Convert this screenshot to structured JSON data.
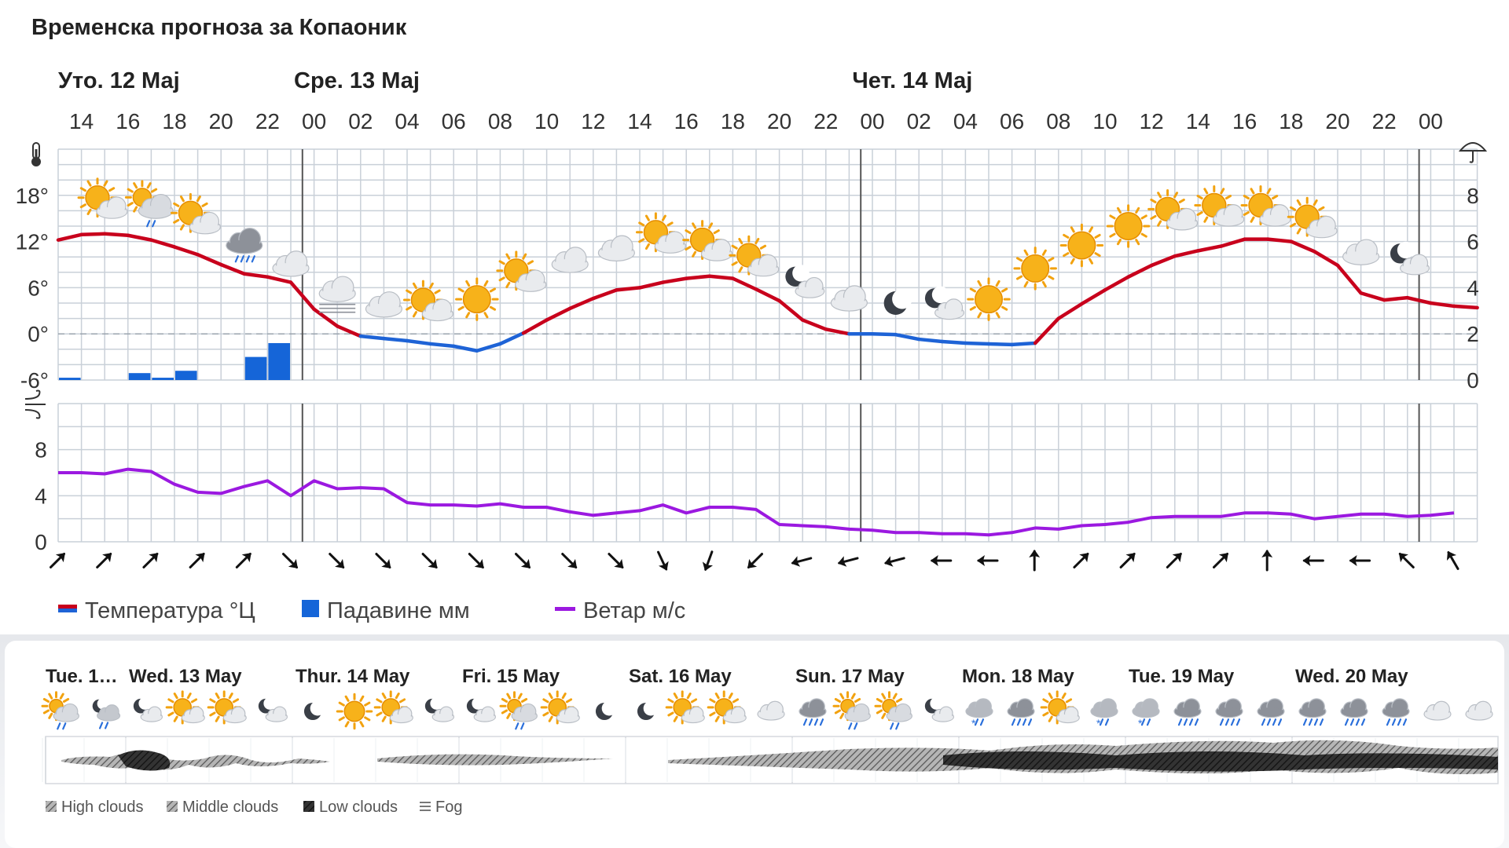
{
  "title": "Временска прогноза за Копаоник",
  "colors": {
    "temp_warm": "#c8001c",
    "temp_cold": "#1e63d6",
    "precip": "#1565d8",
    "wind": "#9b19e0",
    "grid": "#c9d0d8",
    "day_line": "#555555"
  },
  "icons": {
    "temp_axis": "thermometer-icon",
    "precip_axis": "umbrella-icon",
    "wind_axis": "wind-icon"
  },
  "chart_data": [
    {
      "type": "line",
      "panel": "temperature-precipitation",
      "day_labels": [
        {
          "label": "Уто. 12 Мај",
          "hour_index": -1
        },
        {
          "label": "Сре. 13 Мај",
          "hour_index": 10
        },
        {
          "label": "Чет. 14 Мај",
          "hour_index": 34
        }
      ],
      "x_hour_labels": [
        "14",
        "16",
        "18",
        "20",
        "22",
        "00",
        "02",
        "04",
        "06",
        "08",
        "10",
        "12",
        "14",
        "16",
        "18",
        "20",
        "22",
        "00",
        "02",
        "04",
        "06",
        "08",
        "10",
        "12",
        "14",
        "16",
        "18",
        "20",
        "22",
        "00"
      ],
      "ytick_temperature": [
        "18°",
        "12°",
        "6°",
        "0°",
        "-6°"
      ],
      "ytick_precipitation": [
        "8",
        "6",
        "4",
        "2",
        "0"
      ],
      "ylim_temperature": [
        -6,
        24
      ],
      "ylim_precipitation": [
        0,
        10
      ],
      "series": [
        {
          "name": "Температура °Ц",
          "unit": "°C",
          "values": [
            12.2,
            12.9,
            13.0,
            12.8,
            12.2,
            11.3,
            10.3,
            9.0,
            7.8,
            7.4,
            6.7,
            3.2,
            1.0,
            -0.3,
            -0.6,
            -0.9,
            -1.3,
            -1.6,
            -2.2,
            -1.3,
            0.1,
            1.8,
            3.3,
            4.6,
            5.7,
            6.0,
            6.7,
            7.2,
            7.5,
            7.2,
            5.8,
            4.3,
            1.8,
            0.6,
            0.0,
            0.0,
            -0.1,
            -0.7,
            -1.0,
            -1.2,
            -1.3,
            -1.4,
            -1.2,
            2.0,
            3.9,
            5.7,
            7.4,
            8.9,
            10.1,
            10.8,
            11.4,
            12.3,
            12.3,
            12.0,
            10.7,
            8.9,
            5.3,
            4.4,
            4.7,
            4.0,
            3.6,
            3.4
          ]
        },
        {
          "name": "Падавине мм",
          "unit": "mm",
          "bars": [
            {
              "hour_index": 0,
              "value": 0.1
            },
            {
              "hour_index": 3,
              "value": 0.3
            },
            {
              "hour_index": 4,
              "value": 0.1
            },
            {
              "hour_index": 5,
              "value": 0.4
            },
            {
              "hour_index": 8,
              "value": 1.0
            },
            {
              "hour_index": 9,
              "value": 1.6
            }
          ]
        }
      ],
      "weather_icons": [
        {
          "hour_index": 2,
          "icon": "sun-cloud-icon",
          "value": 17.0
        },
        {
          "hour_index": 4,
          "icon": "sun-cloud-rain-icon",
          "value": 16.8
        },
        {
          "hour_index": 6,
          "icon": "sun-cloud-icon",
          "value": 15.0
        },
        {
          "hour_index": 8,
          "icon": "cloud-rain-icon",
          "value": 11.5
        },
        {
          "hour_index": 10,
          "icon": "cloud-icon",
          "value": 9.0
        },
        {
          "hour_index": 12,
          "icon": "fog-icon",
          "value": 5.0
        },
        {
          "hour_index": 14,
          "icon": "cloud-icon",
          "value": 3.7
        },
        {
          "hour_index": 16,
          "icon": "sun-cloud-icon",
          "value": 3.7
        },
        {
          "hour_index": 18,
          "icon": "sun-icon",
          "value": 4.5
        },
        {
          "hour_index": 20,
          "icon": "sun-cloud-icon",
          "value": 7.5
        },
        {
          "hour_index": 22,
          "icon": "cloud-icon",
          "value": 9.5
        },
        {
          "hour_index": 24,
          "icon": "cloud-icon",
          "value": 11.0
        },
        {
          "hour_index": 26,
          "icon": "sun-cloud-icon",
          "value": 12.5
        },
        {
          "hour_index": 28,
          "icon": "sun-cloud-icon",
          "value": 11.5
        },
        {
          "hour_index": 30,
          "icon": "sun-cloud-icon",
          "value": 9.5
        },
        {
          "hour_index": 32,
          "icon": "moon-cloud-icon",
          "value": 6.5
        },
        {
          "hour_index": 34,
          "icon": "cloud-icon",
          "value": 4.5
        },
        {
          "hour_index": 36,
          "icon": "moon-icon",
          "value": 4.0
        },
        {
          "hour_index": 38,
          "icon": "moon-cloud-icon",
          "value": 3.7
        },
        {
          "hour_index": 40,
          "icon": "sun-icon",
          "value": 4.5
        },
        {
          "hour_index": 42,
          "icon": "sun-icon",
          "value": 8.5
        },
        {
          "hour_index": 44,
          "icon": "sun-icon",
          "value": 11.5
        },
        {
          "hour_index": 46,
          "icon": "sun-icon",
          "value": 14.0
        },
        {
          "hour_index": 48,
          "icon": "sun-cloud-icon",
          "value": 15.5
        },
        {
          "hour_index": 50,
          "icon": "sun-cloud-icon",
          "value": 16.0
        },
        {
          "hour_index": 52,
          "icon": "sun-cloud-icon",
          "value": 16.0
        },
        {
          "hour_index": 54,
          "icon": "sun-cloud-icon",
          "value": 14.5
        },
        {
          "hour_index": 56,
          "icon": "cloud-icon",
          "value": 10.5
        },
        {
          "hour_index": 58,
          "icon": "moon-cloud-icon",
          "value": 9.5
        }
      ]
    },
    {
      "type": "line",
      "panel": "wind",
      "ytick": [
        "8",
        "4",
        "0"
      ],
      "ylim": [
        0,
        12
      ],
      "series": [
        {
          "name": "Ветар м/с",
          "unit": "m/s",
          "values": [
            6.0,
            6.0,
            5.9,
            6.3,
            6.1,
            5.0,
            4.3,
            4.2,
            4.8,
            5.3,
            4.0,
            5.3,
            4.6,
            4.7,
            4.6,
            3.4,
            3.2,
            3.2,
            3.1,
            3.3,
            3.0,
            3.0,
            2.6,
            2.3,
            2.5,
            2.7,
            3.2,
            2.5,
            3.0,
            3.0,
            2.8,
            1.5,
            1.4,
            1.3,
            1.1,
            1.0,
            0.8,
            0.8,
            0.7,
            0.7,
            0.6,
            0.8,
            1.2,
            1.1,
            1.4,
            1.5,
            1.7,
            2.1,
            2.2,
            2.2,
            2.2,
            2.5,
            2.5,
            2.4,
            2.0,
            2.2,
            2.4,
            2.4,
            2.2,
            2.3,
            2.5
          ]
        }
      ],
      "wind_direction_deg": [
        45,
        45,
        45,
        45,
        45,
        135,
        135,
        135,
        135,
        135,
        135,
        135,
        135,
        155,
        200,
        225,
        255,
        255,
        255,
        270,
        270,
        0,
        45,
        45,
        45,
        45,
        0,
        270,
        270,
        315,
        330
      ]
    }
  ],
  "legend": [
    {
      "label": "Температура °Ц",
      "icon": "temperature-legend-icon"
    },
    {
      "label": "Падавине мм",
      "icon": "precipitation-legend-icon"
    },
    {
      "label": "Ветар м/с",
      "icon": "wind-legend-icon"
    }
  ],
  "lower": {
    "days": [
      {
        "label": "Tue. 1…",
        "slot": 0
      },
      {
        "label": "Wed. 13 May",
        "slot": 2
      },
      {
        "label": "Thur. 14 May",
        "slot": 6
      },
      {
        "label": "Fri. 15 May",
        "slot": 10
      },
      {
        "label": "Sat. 16 May",
        "slot": 14
      },
      {
        "label": "Sun. 17 May",
        "slot": 18
      },
      {
        "label": "Mon. 18 May",
        "slot": 22
      },
      {
        "label": "Tue. 19 May",
        "slot": 26
      },
      {
        "label": "Wed. 20 May",
        "slot": 30
      }
    ],
    "icons": [
      "sun-cloud-rain-icon",
      "moon-cloud-rain-icon",
      "moon-cloud-icon",
      "sun-cloud-icon",
      "sun-cloud-icon",
      "moon-cloud-icon",
      "moon-icon",
      "sun-icon",
      "sun-cloud-icon",
      "moon-cloud-icon",
      "moon-cloud-icon",
      "sun-cloud-rain-icon",
      "sun-cloud-icon",
      "moon-icon",
      "moon-icon",
      "sun-cloud-icon",
      "sun-cloud-icon",
      "cloud-icon",
      "cloud-rain-icon",
      "sun-cloud-rain-icon",
      "sun-cloud-rain-icon",
      "moon-cloud-icon",
      "cloud-snow-icon",
      "cloud-rain-icon",
      "sun-cloud-icon",
      "cloud-snow-icon",
      "cloud-snow-icon",
      "cloud-rain-icon",
      "cloud-rain-icon",
      "cloud-rain-icon",
      "cloud-rain-icon",
      "cloud-rain-icon",
      "cloud-rain-icon",
      "cloud-icon",
      "cloud-icon"
    ],
    "cloud_legend": [
      {
        "label": "High clouds",
        "icon": "high-clouds-icon"
      },
      {
        "label": "Middle clouds",
        "icon": "middle-clouds-icon"
      },
      {
        "label": "Low clouds",
        "icon": "low-clouds-icon"
      },
      {
        "label": "Fog",
        "icon": "fog-legend-icon"
      }
    ]
  }
}
